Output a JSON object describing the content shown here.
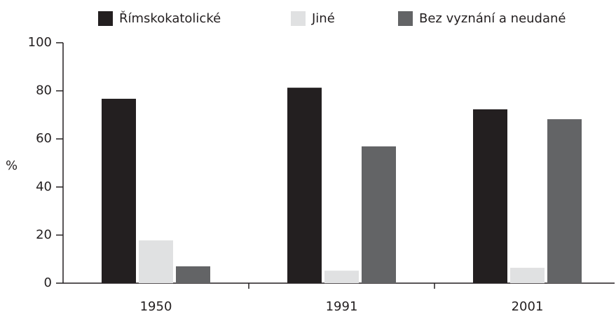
{
  "chart_data": {
    "type": "bar",
    "categories": [
      "1950",
      "1991",
      "2001"
    ],
    "series": [
      {
        "name": "Římskokatolické",
        "color": "#231f20",
        "values": [
          76.7,
          81.3,
          72.3
        ]
      },
      {
        "name": "Jiné",
        "color": "#e0e1e2",
        "values": [
          17.8,
          5.2,
          6.4
        ]
      },
      {
        "name": "Bez vyznání a neudané",
        "color": "#636466",
        "values": [
          7.0,
          56.9,
          68.2
        ]
      }
    ],
    "y_label": "%",
    "ylim": [
      0,
      100
    ],
    "yticks": [
      0,
      20,
      40,
      60,
      80,
      100
    ]
  }
}
